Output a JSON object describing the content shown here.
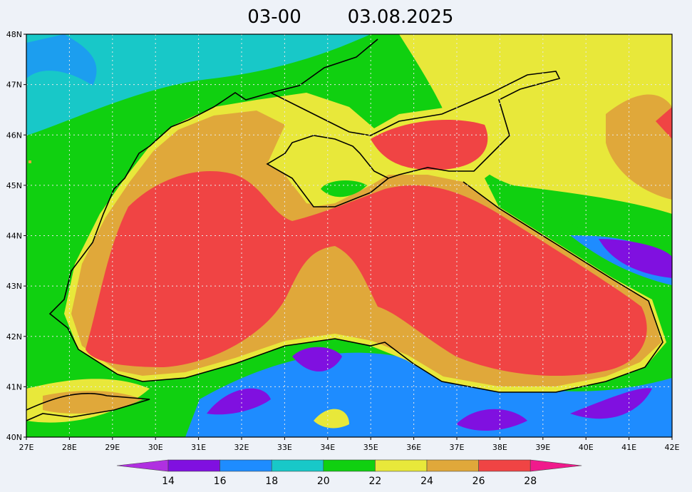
{
  "title": {
    "time": "03-00",
    "date": "03.08.2025"
  },
  "map": {
    "lon_labels": [
      "27E",
      "28E",
      "29E",
      "30E",
      "31E",
      "32E",
      "33E",
      "34E",
      "35E",
      "36E",
      "37E",
      "38E",
      "39E",
      "40E",
      "41E",
      "42E"
    ],
    "lat_labels": [
      "48N",
      "47N",
      "46N",
      "45N",
      "44N",
      "43N",
      "42N",
      "41N",
      "40N"
    ]
  },
  "colorbar": {
    "ticks": [
      14,
      16,
      18,
      20,
      22,
      24,
      26,
      28
    ],
    "colors": [
      "#b030e0",
      "#8010e0",
      "#1e8cff",
      "#18c8c8",
      "#10d010",
      "#e8e83a",
      "#e0a83a",
      "#f04444",
      "#f01a8c"
    ]
  }
}
